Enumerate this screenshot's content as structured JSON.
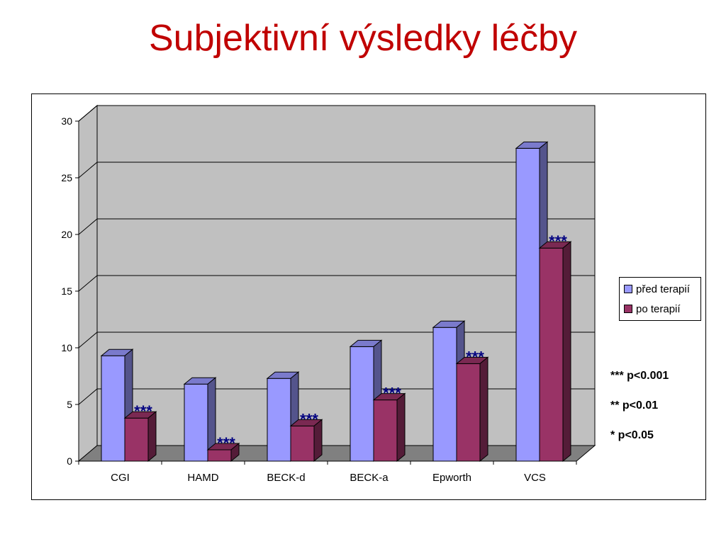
{
  "slide": {
    "title": "Subjektivní výsledky léčby"
  },
  "chart_data": {
    "type": "bar",
    "categories": [
      "CGI",
      "HAMD",
      "BECK-d",
      "BECK-a",
      "Epworth",
      "VCS"
    ],
    "series": [
      {
        "name": "před terapií",
        "values": [
          9.3,
          6.8,
          7.3,
          10.1,
          11.8,
          27.6
        ],
        "color": "#9999ff"
      },
      {
        "name": "po terapií",
        "values": [
          3.8,
          1.0,
          3.1,
          5.4,
          8.6,
          18.8
        ],
        "color": "#993366"
      }
    ],
    "significance": [
      "***",
      "***",
      "***",
      "***",
      "***",
      "***"
    ],
    "ylim": [
      0,
      30
    ],
    "yticks": [
      0,
      5,
      10,
      15,
      20,
      25,
      30
    ],
    "ytick_labels": [
      "0",
      "5",
      "10",
      "15",
      "20",
      "25",
      "30"
    ],
    "grid": true,
    "legend_position": "right",
    "xlabel": "",
    "ylabel": "",
    "wall_color": "#c0c0c0",
    "floor_color": "#808080"
  },
  "notes": [
    {
      "text": "*** p<0.001"
    },
    {
      "text": "** p<0.01"
    },
    {
      "text": "* p<0.05"
    }
  ]
}
